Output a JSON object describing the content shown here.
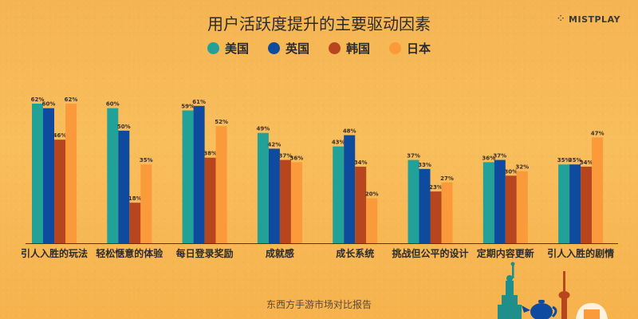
{
  "header": {
    "title": "用户活跃度提升的主要驱动因素",
    "logo_text": "MISTPLAY",
    "logo_icon": "mistplay-dots-icon"
  },
  "legend": [
    {
      "label": "美国",
      "color": "#22A199"
    },
    {
      "label": "英国",
      "color": "#0E4A9E"
    },
    {
      "label": "韩国",
      "color": "#B7461F"
    },
    {
      "label": "日本",
      "color": "#FA9A3B"
    }
  ],
  "footer": {
    "source": "东西方手游市场对比报告"
  },
  "chart_data": {
    "type": "bar",
    "title": "用户活跃度提升的主要驱动因素",
    "categories": [
      "引人入胜的玩法",
      "轻松惬意的体验",
      "每日登录奖励",
      "成就感",
      "成长系统",
      "挑战但公平的设计",
      "定期内容更新",
      "引人入胜的剧情"
    ],
    "series": [
      {
        "name": "美国",
        "color": "#22A199",
        "values": [
          62,
          60,
          59,
          49,
          43,
          37,
          36,
          35
        ]
      },
      {
        "name": "英国",
        "color": "#0E4A9E",
        "values": [
          60,
          50,
          61,
          42,
          48,
          33,
          37,
          35
        ]
      },
      {
        "name": "韩国",
        "color": "#B7461F",
        "values": [
          46,
          18,
          38,
          37,
          34,
          23,
          30,
          34
        ]
      },
      {
        "name": "日本",
        "color": "#FA9A3B",
        "values": [
          62,
          35,
          52,
          36,
          20,
          27,
          32,
          47
        ]
      }
    ],
    "value_suffix": "%",
    "ylim": [
      0,
      62
    ],
    "grid": false,
    "legend_position": "top-center"
  }
}
